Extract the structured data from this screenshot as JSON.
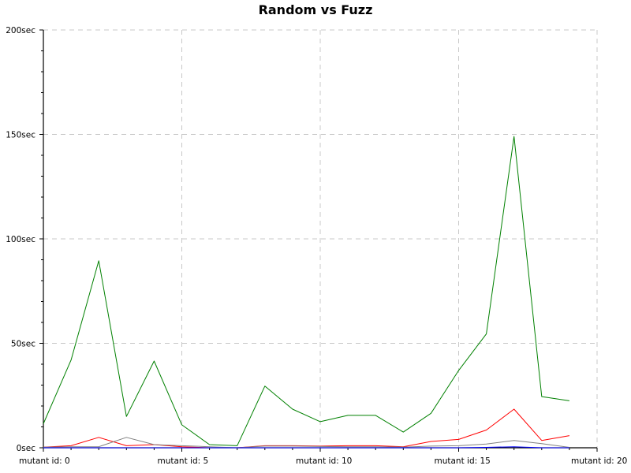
{
  "chart_data": {
    "type": "line",
    "title": "Random vs Fuzz",
    "xlabel": "",
    "ylabel": "",
    "x": [
      0,
      1,
      2,
      3,
      4,
      5,
      6,
      7,
      8,
      9,
      10,
      11,
      12,
      13,
      14,
      15,
      16,
      17,
      18,
      19
    ],
    "xlim": [
      0,
      20
    ],
    "ylim": [
      0,
      200
    ],
    "grid": true,
    "x_tick_values": [
      0,
      5,
      10,
      15,
      20
    ],
    "x_tick_labels": [
      "mutant id: 0",
      "mutant id: 5",
      "mutant id: 10",
      "mutant id: 15",
      "mutant id: 20"
    ],
    "y_tick_values": [
      0,
      50,
      100,
      150,
      200
    ],
    "y_tick_labels": [
      "0sec",
      "50sec",
      "100sec",
      "150sec",
      "200sec"
    ],
    "series": [
      {
        "color": "#008000",
        "values": [
          11.5,
          42,
          89.5,
          15,
          41.5,
          11,
          1.5,
          1,
          29.5,
          18.5,
          12.5,
          15.5,
          15.5,
          7.5,
          16.5,
          37,
          54.5,
          149,
          24.5,
          22.5
        ]
      },
      {
        "color": "#ff0000",
        "values": [
          0.3,
          1,
          5,
          1,
          1.5,
          0.5,
          0,
          0,
          1,
          1,
          0.8,
          1,
          1,
          0.5,
          3,
          4,
          8.5,
          18.5,
          3.5,
          5.8
        ]
      },
      {
        "color": "#808080",
        "values": [
          0.3,
          0.5,
          0.5,
          5,
          1.5,
          1,
          0.5,
          0,
          0.8,
          0.8,
          0.6,
          0.5,
          0.5,
          0.3,
          0.8,
          1,
          1.8,
          3.5,
          2,
          0.2
        ]
      },
      {
        "color": "#0000ff",
        "values": [
          0,
          0,
          0,
          0,
          0,
          0,
          0,
          0,
          0,
          0,
          0,
          0,
          0,
          0,
          0,
          0,
          0.2,
          0.5,
          0,
          0
        ]
      }
    ]
  }
}
